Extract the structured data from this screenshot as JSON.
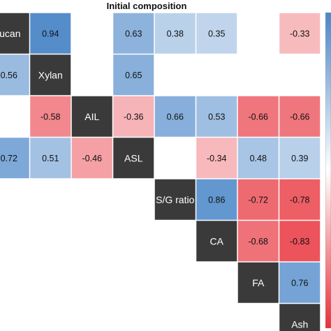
{
  "chart_data": {
    "type": "heatmap",
    "title": "Initial composition",
    "variables": [
      "Glucan",
      "Xylan",
      "AIL",
      "ASL",
      "S/G ratio",
      "CA",
      "FA",
      "Ash"
    ],
    "diagonal_labels_visible": [
      "lucan",
      "Xylan",
      "AIL",
      "ASL",
      "S/G ratio",
      "CA",
      "FA",
      "Ash"
    ],
    "cells": [
      {
        "row": 0,
        "col": 1,
        "value": 0.94
      },
      {
        "row": 0,
        "col": 3,
        "value": 0.63
      },
      {
        "row": 0,
        "col": 4,
        "value": 0.38
      },
      {
        "row": 0,
        "col": 5,
        "value": 0.35
      },
      {
        "row": 0,
        "col": 7,
        "value": -0.33
      },
      {
        "row": 1,
        "col": 0,
        "value": 0.56
      },
      {
        "row": 1,
        "col": 3,
        "value": 0.65
      },
      {
        "row": 2,
        "col": 1,
        "value": -0.58
      },
      {
        "row": 2,
        "col": 3,
        "value": -0.36
      },
      {
        "row": 2,
        "col": 4,
        "value": 0.66
      },
      {
        "row": 2,
        "col": 5,
        "value": 0.53
      },
      {
        "row": 2,
        "col": 6,
        "value": -0.66
      },
      {
        "row": 2,
        "col": 7,
        "value": -0.66
      },
      {
        "row": 3,
        "col": 0,
        "value": 0.72
      },
      {
        "row": 3,
        "col": 1,
        "value": 0.51
      },
      {
        "row": 3,
        "col": 2,
        "value": -0.46
      },
      {
        "row": 3,
        "col": 5,
        "value": -0.34
      },
      {
        "row": 3,
        "col": 6,
        "value": 0.48
      },
      {
        "row": 3,
        "col": 7,
        "value": 0.39
      },
      {
        "row": 4,
        "col": 5,
        "value": 0.86
      },
      {
        "row": 4,
        "col": 6,
        "value": -0.72
      },
      {
        "row": 4,
        "col": 7,
        "value": -0.78
      },
      {
        "row": 5,
        "col": 6,
        "value": -0.68
      },
      {
        "row": 5,
        "col": 7,
        "value": -0.83
      },
      {
        "row": 6,
        "col": 7,
        "value": 0.76
      }
    ],
    "color_scale": {
      "min": -1,
      "max": 1,
      "negative": "#e8303a",
      "zero": "#ffffff",
      "positive": "#4a86c8"
    },
    "diagonal_color": "#3a3a3a"
  }
}
